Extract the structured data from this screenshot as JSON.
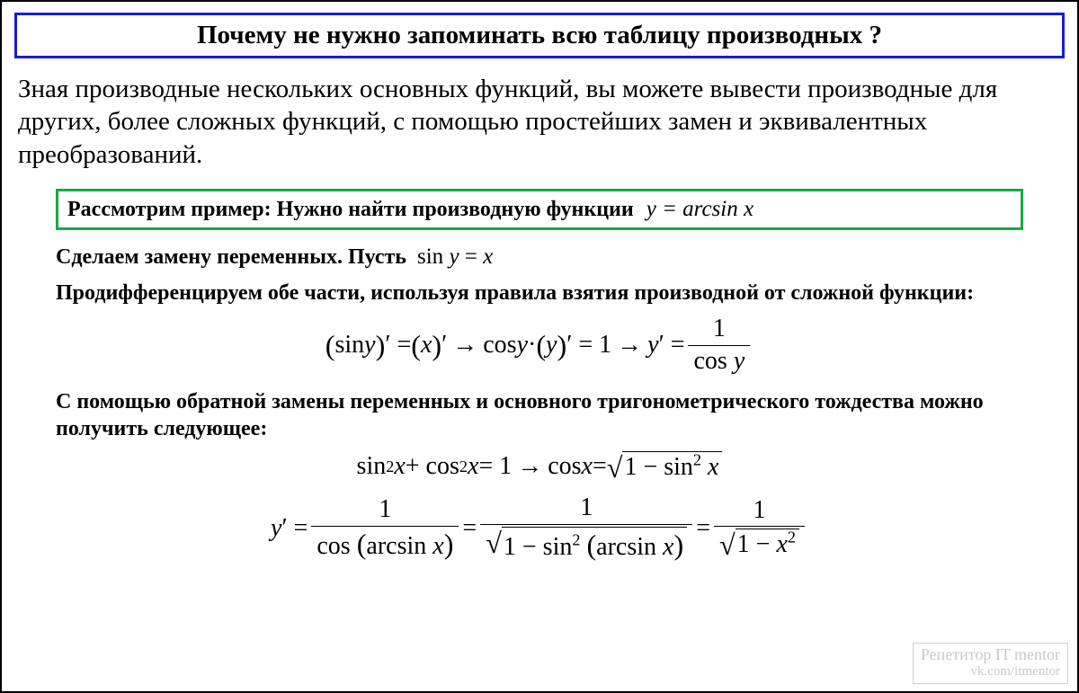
{
  "title": "Почему не нужно запоминать всю таблицу производных ?",
  "intro": "Зная производные нескольких основных функций, вы можете вывести производные для других, более сложных функций, с помощью простейших замен и эквивалентных преобразований.",
  "example": {
    "label": "Рассмотрим пример: Нужно найти производную функции",
    "formula_html": "<span class='it'>y</span> = arcsin <span class='it'>x</span>"
  },
  "step1": {
    "text": "Сделаем замену переменных. Пусть",
    "formula_html": "sin <span class='it'>y</span> = <span class='it'>x</span>"
  },
  "step2": "Продифференцируем обе части, используя правила взятия производной от сложной функции:",
  "math1_html": "<span class='bigparen'>(</span>sin <span class='it'>y</span><span class='bigparen'>)</span>′ = <span class='bigparen'>(</span><span class='it'>x</span><span class='bigparen'>)</span>′ <span class='arrow'>→</span> cos <span class='it'>y</span> · <span class='bigparen'>(</span><span class='it'>y</span><span class='bigparen'>)</span>′ = 1 <span class='arrow'>→</span> <span class='it'>y</span>′ = <span class='frac'><span class='num'>1</span><span class='bar'></span><span class='den'>cos <span class='it'>y</span></span></span>",
  "step3": "С помощью обратной замены переменных и основного тригонометрического тождества можно получить следующее:",
  "math2_html": "sin<sup>2</sup> <span class='it'>x</span> + cos<sup>2</sup> <span class='it'>x</span> = 1 <span class='arrow'>→</span> cos <span class='it'>x</span> = <span class='sqrt'><span class='radical'>√</span><span class='radicand'>1 − sin<sup>2</sup> <span class='it'>x</span></span></span>",
  "math3_html": "<span class='it'>y</span>′ = <span class='frac'><span class='num'>1</span><span class='bar'></span><span class='den'>cos <span class='bigparen'>(</span>arcsin <span class='it'>x</span><span class='bigparen'>)</span></span></span> = <span class='frac'><span class='num'>1</span><span class='bar'></span><span class='den'><span class='sqrt'><span class='radical'>√</span><span class='radicand'>1 − sin<sup>2</sup> <span class='bigparen'>(</span>arcsin <span class='it'>x</span><span class='bigparen'>)</span></span></span></span></span> = <span class='frac'><span class='num'>1</span><span class='bar'></span><span class='den'><span class='sqrt'><span class='radical'>√</span><span class='radicand'>1 − <span class='it'>x</span><sup>2</sup></span></span></span></span>",
  "watermark": {
    "line1": "Репетитор IT mentor",
    "line2": "vk.com/itmentor"
  },
  "colors": {
    "title_border": "#1a1ad6",
    "example_border": "#1aa94a",
    "page_border": "#000000",
    "watermark_text": "#c9c9c9",
    "watermark_border": "#d0d0d0",
    "text": "#000000",
    "background": "#ffffff"
  }
}
